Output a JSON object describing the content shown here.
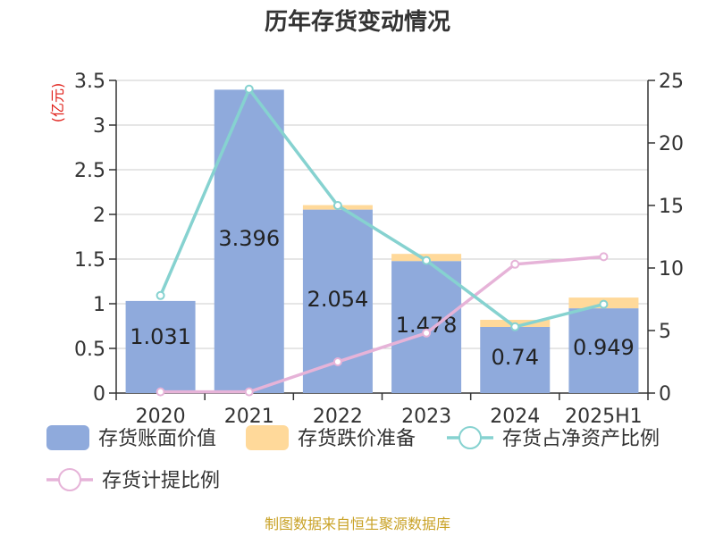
{
  "chart_data": {
    "type": "bar",
    "title": "历年存货变动情况",
    "categories": [
      "2020",
      "2021",
      "2022",
      "2023",
      "2024",
      "2025H1"
    ],
    "y_left_unit": "(亿元)",
    "y_left_ticks": [
      "0",
      "0.5",
      "1",
      "1.5",
      "2",
      "2.5",
      "3",
      "3.5"
    ],
    "y_left_range": [
      0,
      3.5
    ],
    "y_right_ticks": [
      "0",
      "5",
      "10",
      "15",
      "20",
      "25"
    ],
    "y_right_range": [
      0,
      25
    ],
    "grid": true,
    "series": [
      {
        "name": "存货账面价值",
        "kind": "bar",
        "axis": "left",
        "color": "#8faadc",
        "values": [
          1.031,
          3.396,
          2.054,
          1.478,
          0.74,
          0.949
        ],
        "labels": [
          "1.031",
          "3.396",
          "2.054",
          "1.478",
          "0.74",
          "0.949"
        ]
      },
      {
        "name": "存货跌价准备",
        "kind": "bar-stacked",
        "axis": "left",
        "color": "#ffd99a",
        "values": [
          0,
          0,
          0.05,
          0.08,
          0.08,
          0.12
        ]
      },
      {
        "name": "存货占净资产比例",
        "kind": "line",
        "axis": "right",
        "color": "#86d2d0",
        "values": [
          7.8,
          24.3,
          15.0,
          10.6,
          5.3,
          7.1
        ]
      },
      {
        "name": "存货计提比例",
        "kind": "line",
        "axis": "right",
        "color": "#e6b3d8",
        "values": [
          0.1,
          0.1,
          2.5,
          4.8,
          10.3,
          10.9
        ]
      }
    ],
    "legend_position": "bottom",
    "source_text": "制图数据来自恒生聚源数据库"
  }
}
